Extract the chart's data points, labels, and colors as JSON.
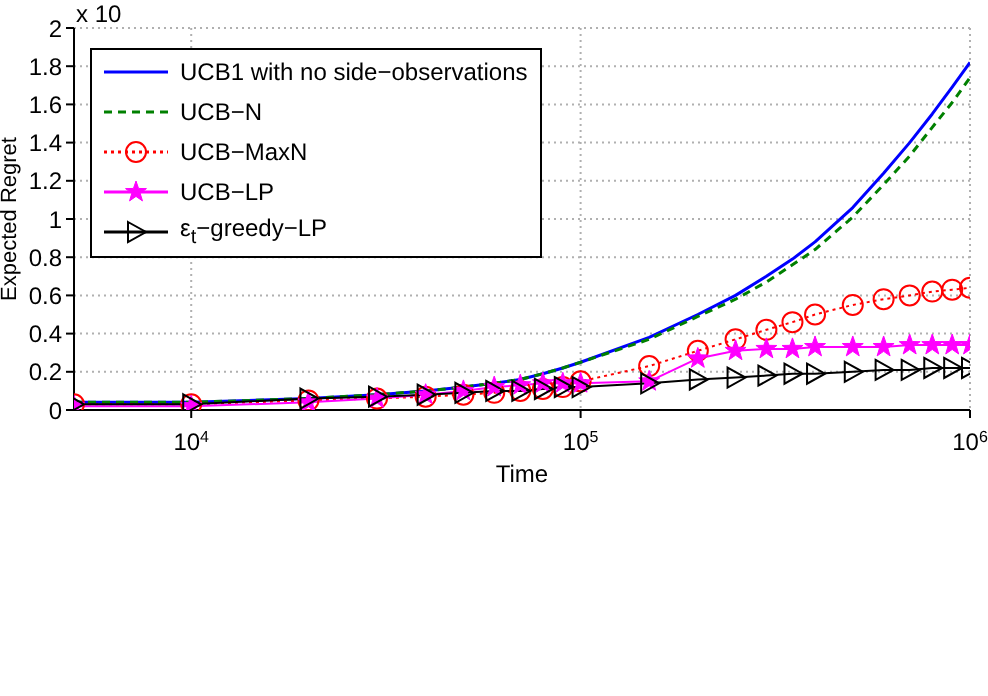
{
  "chart_data": {
    "type": "line",
    "xlabel": "Time",
    "ylabel": "Expected Regret",
    "annotations": [
      "x 10"
    ],
    "x": [
      5000,
      10000,
      20000,
      30000,
      40000,
      50000,
      60000,
      70000,
      80000,
      90000,
      100000,
      150000,
      200000,
      250000,
      300000,
      350000,
      400000,
      500000,
      600000,
      700000,
      800000,
      900000,
      1000000
    ],
    "series": [
      {
        "name": "UCB1 with no side−observations",
        "color": "#0000ff",
        "marker": "none",
        "line_style": "solid",
        "values": [
          0.04,
          0.04,
          0.06,
          0.08,
          0.1,
          0.12,
          0.14,
          0.16,
          0.19,
          0.22,
          0.25,
          0.38,
          0.5,
          0.6,
          0.7,
          0.79,
          0.88,
          1.06,
          1.24,
          1.4,
          1.55,
          1.69,
          1.82
        ]
      },
      {
        "name": "UCB−N",
        "color": "#008000",
        "marker": "none",
        "line_style": "dashed",
        "values": [
          0.04,
          0.04,
          0.06,
          0.08,
          0.1,
          0.12,
          0.14,
          0.16,
          0.19,
          0.22,
          0.25,
          0.37,
          0.49,
          0.58,
          0.67,
          0.76,
          0.84,
          1.01,
          1.18,
          1.33,
          1.48,
          1.61,
          1.74
        ]
      },
      {
        "name": "UCB−MaxN",
        "color": "#ff0000",
        "marker": "circle",
        "line_style": "dotted",
        "values": [
          0.03,
          0.03,
          0.05,
          0.06,
          0.07,
          0.08,
          0.09,
          0.1,
          0.11,
          0.12,
          0.15,
          0.23,
          0.31,
          0.37,
          0.42,
          0.46,
          0.5,
          0.55,
          0.58,
          0.6,
          0.62,
          0.63,
          0.64
        ]
      },
      {
        "name": "UCB−LP",
        "color": "#ff00ff",
        "marker": "star",
        "line_style": "solid",
        "values": [
          0.02,
          0.02,
          0.04,
          0.06,
          0.08,
          0.1,
          0.12,
          0.13,
          0.14,
          0.14,
          0.14,
          0.15,
          0.27,
          0.31,
          0.32,
          0.32,
          0.33,
          0.33,
          0.33,
          0.34,
          0.34,
          0.34,
          0.34
        ]
      },
      {
        "name": "ε$_{t}$−greedy−LP",
        "color": "#000000",
        "marker": "triangle",
        "line_style": "solid",
        "values": [
          0.03,
          0.03,
          0.06,
          0.07,
          0.08,
          0.09,
          0.1,
          0.1,
          0.11,
          0.12,
          0.12,
          0.14,
          0.16,
          0.17,
          0.18,
          0.19,
          0.19,
          0.2,
          0.21,
          0.21,
          0.22,
          0.22,
          0.22
        ]
      }
    ],
    "log": "x",
    "xlim": [
      5000,
      1000000
    ],
    "xticks": [
      {
        "value": 10000,
        "label": "10$^{4}$"
      },
      {
        "value": 100000,
        "label": "10$^{5}$"
      },
      {
        "value": 1000000,
        "label": "10$^{6}$"
      }
    ],
    "ylim": [
      0,
      2
    ],
    "yticks": [
      0,
      0.2,
      0.4,
      0.6,
      0.8,
      1,
      1.2,
      1.4,
      1.6,
      1.8,
      2
    ],
    "grid": true,
    "legend": "top left"
  }
}
